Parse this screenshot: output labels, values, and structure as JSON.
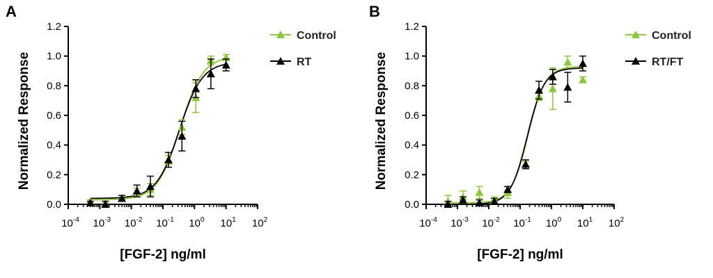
{
  "chart_data": [
    {
      "panel": "A",
      "type": "scatter",
      "xlabel": "[FGF-2] ng/ml",
      "ylabel": "Normalized Response",
      "x_scale": "log",
      "xlim": [
        0.0001,
        100
      ],
      "ylim": [
        0,
        1.2
      ],
      "x_ticks": [
        {
          "base": "10",
          "exp": "-4"
        },
        {
          "base": "10",
          "exp": "-3"
        },
        {
          "base": "10",
          "exp": "-2"
        },
        {
          "base": "10",
          "exp": "-1"
        },
        {
          "base": "10",
          "exp": "0"
        },
        {
          "base": "10",
          "exp": "1"
        },
        {
          "base": "10",
          "exp": "2"
        }
      ],
      "y_ticks": [
        "0.0",
        "0.2",
        "0.4",
        "0.6",
        "0.8",
        "1.0",
        "1.2"
      ],
      "legend_position": "top-right",
      "fit": "sigmoidal dose-response curve",
      "series": [
        {
          "name": "Control",
          "color": "#8dc63f",
          "marker": "triangle",
          "x": [
            0.0005,
            0.0015,
            0.005,
            0.015,
            0.04,
            0.15,
            0.4,
            1.1,
            3.3,
            10
          ],
          "y": [
            0.02,
            0.01,
            0.04,
            0.08,
            0.1,
            0.29,
            0.52,
            0.72,
            0.97,
            0.99
          ],
          "err": [
            0.01,
            0.02,
            0.02,
            0.03,
            0.04,
            0.04,
            0.05,
            0.1,
            0.03,
            0.02
          ],
          "fit": {
            "bottom": 0.03,
            "top": 1.0,
            "ec50": 0.35,
            "hill": 1.2
          }
        },
        {
          "name": "RT",
          "color": "#000000",
          "marker": "triangle",
          "x": [
            0.0005,
            0.0015,
            0.005,
            0.015,
            0.04,
            0.15,
            0.4,
            1.1,
            3.3,
            10
          ],
          "y": [
            0.01,
            0.0,
            0.04,
            0.09,
            0.12,
            0.3,
            0.46,
            0.78,
            0.88,
            0.94
          ],
          "err": [
            0.01,
            0.02,
            0.02,
            0.04,
            0.07,
            0.05,
            0.1,
            0.06,
            0.1,
            0.04
          ],
          "fit": {
            "bottom": 0.04,
            "top": 0.96,
            "ec50": 0.33,
            "hill": 1.2
          }
        }
      ]
    },
    {
      "panel": "B",
      "type": "scatter",
      "xlabel": "[FGF-2] ng/ml",
      "ylabel": "Normalized Response",
      "x_scale": "log",
      "xlim": [
        0.0001,
        100
      ],
      "ylim": [
        0,
        1.2
      ],
      "x_ticks": [
        {
          "base": "10",
          "exp": "-4"
        },
        {
          "base": "10",
          "exp": "-3"
        },
        {
          "base": "10",
          "exp": "-2"
        },
        {
          "base": "10",
          "exp": "-1"
        },
        {
          "base": "10",
          "exp": "0"
        },
        {
          "base": "10",
          "exp": "1"
        },
        {
          "base": "10",
          "exp": "2"
        }
      ],
      "y_ticks": [
        "0.0",
        "0.2",
        "0.4",
        "0.6",
        "0.8",
        "1.0",
        "1.2"
      ],
      "legend_position": "top-right",
      "fit": "sigmoidal dose-response curve",
      "series": [
        {
          "name": "Control",
          "color": "#8dc63f",
          "marker": "triangle",
          "x": [
            0.0005,
            0.0015,
            0.005,
            0.015,
            0.04,
            0.15,
            0.4,
            1.1,
            3.3,
            10
          ],
          "y": [
            0.02,
            0.05,
            0.08,
            0.03,
            0.08,
            0.27,
            0.73,
            0.78,
            0.96,
            0.84
          ],
          "err": [
            0.04,
            0.04,
            0.04,
            0.02,
            0.04,
            0.02,
            0.03,
            0.14,
            0.04,
            0.02
          ],
          "fit": {
            "bottom": 0.01,
            "top": 0.93,
            "ec50": 0.18,
            "hill": 1.6
          }
        },
        {
          "name": "RT/FT",
          "color": "#000000",
          "marker": "triangle",
          "x": [
            0.0005,
            0.0015,
            0.005,
            0.015,
            0.04,
            0.15,
            0.4,
            1.1,
            3.3,
            10
          ],
          "y": [
            0.0,
            0.03,
            0.01,
            0.02,
            0.1,
            0.27,
            0.77,
            0.86,
            0.79,
            0.95
          ],
          "err": [
            0.02,
            0.02,
            0.02,
            0.02,
            0.02,
            0.03,
            0.06,
            0.05,
            0.1,
            0.05
          ],
          "fit": {
            "bottom": 0.0,
            "top": 0.92,
            "ec50": 0.17,
            "hill": 1.6
          }
        }
      ]
    }
  ]
}
